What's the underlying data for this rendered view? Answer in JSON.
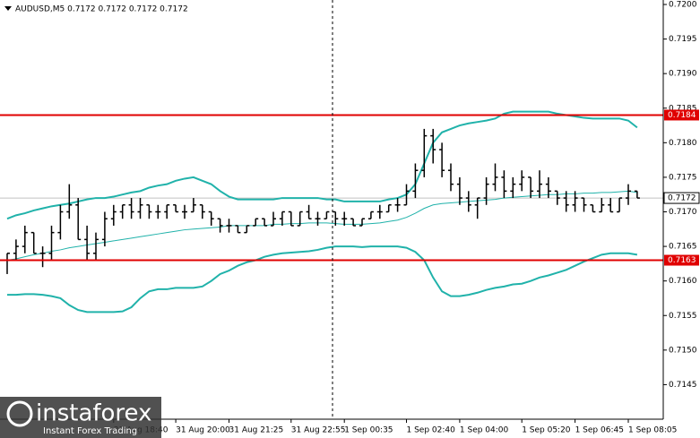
{
  "chart_data": {
    "type": "ohlc",
    "title": "AUDUSD,M5  0.7172 0.7172 0.7172 0.7172",
    "color": "#000000",
    "ylim": [
      0.714,
      0.72
    ],
    "yticks": [
      0.7145,
      {
        "value": 0.715,
        "label": "0.7150"
      },
      0.7155,
      {
        "value": 0.716,
        "label": "0.7160"
      },
      0.7165,
      {
        "value": 0.717,
        "label": "0.7170"
      },
      0.7175,
      {
        "value": 0.718,
        "label": "0.7180"
      },
      0.7185,
      {
        "value": 0.719,
        "label": "0.7190"
      },
      0.7195,
      {
        "value": 0.72,
        "label": "0.7200"
      }
    ],
    "xticks": [
      {
        "value": 12,
        "label": "31 Aug 18:40"
      },
      {
        "value": 19,
        "label": "31 Aug 20:00"
      },
      {
        "value": 25,
        "label": "31 Aug 21:25"
      },
      {
        "value": 32,
        "label": "31 Aug 22:55"
      },
      {
        "value": 38,
        "label": "1 Sep 00:35"
      },
      {
        "value": 45,
        "label": "1 Sep 02:40"
      },
      {
        "value": 51,
        "label": "1 Sep 04:00"
      },
      {
        "value": 58,
        "label": "1 Sep 05:20"
      },
      {
        "value": 64,
        "label": "1 Sep 06:45"
      },
      {
        "value": 70,
        "label": "1 Sep 08:05"
      }
    ],
    "levels": [
      {
        "value": 0.7184,
        "label": "0.7184",
        "color": "#e00000"
      },
      {
        "value": 0.7163,
        "label": "0.7163",
        "color": "#e00000"
      }
    ],
    "last_price": {
      "value": 0.7172,
      "label": "0.7172"
    },
    "bands": [
      {
        "color": "#20b2aa",
        "values": [
          0.7169,
          0.71695,
          0.71698,
          0.71702,
          0.71705,
          0.71708,
          0.7171,
          0.71712,
          0.71715,
          0.71718,
          0.7172,
          0.7172,
          0.71722,
          0.71725,
          0.71728,
          0.7173,
          0.71735,
          0.71738,
          0.7174,
          0.71745,
          0.71748,
          0.7175,
          0.71745,
          0.7174,
          0.7173,
          0.71722,
          0.71718,
          0.71718,
          0.71718,
          0.71718,
          0.71718,
          0.7172,
          0.7172,
          0.7172,
          0.7172,
          0.7172,
          0.71718,
          0.71718,
          0.71715,
          0.71715,
          0.71715,
          0.71715,
          0.71715,
          0.71718,
          0.7172,
          0.71725,
          0.7174,
          0.7177,
          0.718,
          0.71815,
          0.7182,
          0.71825,
          0.71828,
          0.7183,
          0.71832,
          0.71835,
          0.71842,
          0.71845,
          0.71845,
          0.71845,
          0.71845,
          0.71845,
          0.71842,
          0.7184,
          0.71838,
          0.71836,
          0.71835,
          0.71835,
          0.71835,
          0.71835,
          0.71832,
          0.71822
        ]
      },
      {
        "color": "#20b2aa",
        "values": [
          0.7163,
          0.71632,
          0.71635,
          0.71638,
          0.7164,
          0.71643,
          0.71645,
          0.71648,
          0.7165,
          0.71652,
          0.71654,
          0.71656,
          0.71658,
          0.7166,
          0.71662,
          0.71664,
          0.71666,
          0.71668,
          0.7167,
          0.71672,
          0.71674,
          0.71675,
          0.71676,
          0.71677,
          0.71678,
          0.7168,
          0.7168,
          0.7168,
          0.7168,
          0.7168,
          0.71682,
          0.71682,
          0.71683,
          0.71683,
          0.71684,
          0.71684,
          0.71684,
          0.71683,
          0.71682,
          0.71682,
          0.71682,
          0.71683,
          0.71684,
          0.71686,
          0.71688,
          0.71692,
          0.71698,
          0.71705,
          0.7171,
          0.71712,
          0.71713,
          0.71714,
          0.71715,
          0.71716,
          0.71717,
          0.71718,
          0.7172,
          0.71721,
          0.71722,
          0.71723,
          0.71724,
          0.71725,
          0.71725,
          0.71726,
          0.71726,
          0.71727,
          0.71727,
          0.71728,
          0.71728,
          0.71729,
          0.7173,
          0.71728
        ]
      },
      {
        "color": "#20b2aa",
        "values": [
          0.7158,
          0.7158,
          0.71581,
          0.71581,
          0.7158,
          0.71578,
          0.71575,
          0.71565,
          0.71558,
          0.71555,
          0.71555,
          0.71555,
          0.71555,
          0.71556,
          0.71562,
          0.71575,
          0.71585,
          0.71588,
          0.71588,
          0.7159,
          0.7159,
          0.7159,
          0.71592,
          0.716,
          0.7161,
          0.71615,
          0.71622,
          0.71627,
          0.7163,
          0.71635,
          0.71638,
          0.7164,
          0.71641,
          0.71642,
          0.71643,
          0.71645,
          0.71648,
          0.7165,
          0.7165,
          0.7165,
          0.71649,
          0.7165,
          0.7165,
          0.7165,
          0.7165,
          0.71648,
          0.71642,
          0.7163,
          0.71605,
          0.71585,
          0.71578,
          0.71578,
          0.7158,
          0.71583,
          0.71587,
          0.7159,
          0.71592,
          0.71595,
          0.71596,
          0.716,
          0.71605,
          0.71608,
          0.71612,
          0.71616,
          0.71622,
          0.71628,
          0.71633,
          0.71638,
          0.7164,
          0.7164,
          0.7164,
          0.71638
        ]
      }
    ],
    "ohlc": [
      [
        0.7163,
        0.7164,
        0.7161,
        0.7164
      ],
      [
        0.7164,
        0.7166,
        0.7163,
        0.7165
      ],
      [
        0.7165,
        0.7168,
        0.7164,
        0.7167
      ],
      [
        0.7167,
        0.7167,
        0.7164,
        0.7164
      ],
      [
        0.7164,
        0.7165,
        0.7162,
        0.7164
      ],
      [
        0.7164,
        0.7168,
        0.7163,
        0.7167
      ],
      [
        0.7167,
        0.7171,
        0.7166,
        0.717
      ],
      [
        0.717,
        0.7174,
        0.7169,
        0.7171
      ],
      [
        0.7171,
        0.7172,
        0.7166,
        0.7166
      ],
      [
        0.7166,
        0.7168,
        0.7163,
        0.7164
      ],
      [
        0.7164,
        0.7167,
        0.7163,
        0.7166
      ],
      [
        0.7166,
        0.717,
        0.7165,
        0.7169
      ],
      [
        0.7169,
        0.7171,
        0.7168,
        0.717
      ],
      [
        0.717,
        0.7171,
        0.7169,
        0.7171
      ],
      [
        0.7171,
        0.7172,
        0.7169,
        0.717
      ],
      [
        0.717,
        0.7172,
        0.7169,
        0.7171
      ],
      [
        0.7171,
        0.7171,
        0.7169,
        0.717
      ],
      [
        0.717,
        0.7171,
        0.7169,
        0.717
      ],
      [
        0.717,
        0.7171,
        0.7169,
        0.7171
      ],
      [
        0.7171,
        0.7171,
        0.717,
        0.717
      ],
      [
        0.717,
        0.7171,
        0.7169,
        0.717
      ],
      [
        0.717,
        0.7172,
        0.717,
        0.7171
      ],
      [
        0.7171,
        0.7171,
        0.7169,
        0.717
      ],
      [
        0.717,
        0.717,
        0.7168,
        0.7169
      ],
      [
        0.7169,
        0.7169,
        0.7167,
        0.7168
      ],
      [
        0.7168,
        0.7169,
        0.7167,
        0.7168
      ],
      [
        0.7168,
        0.7168,
        0.7167,
        0.7167
      ],
      [
        0.7167,
        0.7168,
        0.7167,
        0.7168
      ],
      [
        0.7168,
        0.7169,
        0.7168,
        0.7169
      ],
      [
        0.7169,
        0.7169,
        0.7168,
        0.7168
      ],
      [
        0.7168,
        0.717,
        0.7168,
        0.7169
      ],
      [
        0.7169,
        0.717,
        0.7168,
        0.717
      ],
      [
        0.717,
        0.717,
        0.7168,
        0.7168
      ],
      [
        0.7168,
        0.717,
        0.7168,
        0.717
      ],
      [
        0.717,
        0.7171,
        0.7169,
        0.7169
      ],
      [
        0.7169,
        0.717,
        0.7168,
        0.7169
      ],
      [
        0.7169,
        0.717,
        0.7169,
        0.717
      ],
      [
        0.717,
        0.717,
        0.7168,
        0.7169
      ],
      [
        0.7169,
        0.717,
        0.7168,
        0.7169
      ],
      [
        0.7169,
        0.7169,
        0.7168,
        0.7168
      ],
      [
        0.7168,
        0.7169,
        0.7168,
        0.7169
      ],
      [
        0.7169,
        0.717,
        0.7169,
        0.717
      ],
      [
        0.717,
        0.7171,
        0.7169,
        0.717
      ],
      [
        0.717,
        0.7171,
        0.717,
        0.7171
      ],
      [
        0.7171,
        0.7172,
        0.717,
        0.7171
      ],
      [
        0.7171,
        0.7174,
        0.7171,
        0.7173
      ],
      [
        0.7173,
        0.7177,
        0.7172,
        0.7176
      ],
      [
        0.7176,
        0.7182,
        0.7175,
        0.7181
      ],
      [
        0.7181,
        0.7182,
        0.7177,
        0.7179
      ],
      [
        0.7179,
        0.718,
        0.7175,
        0.7176
      ],
      [
        0.7176,
        0.7177,
        0.7173,
        0.7174
      ],
      [
        0.7174,
        0.7175,
        0.7171,
        0.7172
      ],
      [
        0.7172,
        0.7173,
        0.717,
        0.7171
      ],
      [
        0.7171,
        0.7172,
        0.7169,
        0.7172
      ],
      [
        0.7172,
        0.7175,
        0.7171,
        0.7174
      ],
      [
        0.7174,
        0.7177,
        0.7173,
        0.7175
      ],
      [
        0.7175,
        0.7176,
        0.7172,
        0.7173
      ],
      [
        0.7173,
        0.7175,
        0.7172,
        0.7174
      ],
      [
        0.7174,
        0.7176,
        0.7173,
        0.7175
      ],
      [
        0.7175,
        0.7175,
        0.7172,
        0.7173
      ],
      [
        0.7173,
        0.7176,
        0.7172,
        0.7174
      ],
      [
        0.7174,
        0.7175,
        0.7172,
        0.7173
      ],
      [
        0.7173,
        0.7173,
        0.7171,
        0.7172
      ],
      [
        0.7172,
        0.7173,
        0.717,
        0.7171
      ],
      [
        0.7171,
        0.7173,
        0.717,
        0.7172
      ],
      [
        0.7172,
        0.7172,
        0.717,
        0.7171
      ],
      [
        0.7171,
        0.7171,
        0.717,
        0.717
      ],
      [
        0.717,
        0.7172,
        0.717,
        0.7171
      ],
      [
        0.7171,
        0.7172,
        0.717,
        0.717
      ],
      [
        0.717,
        0.7172,
        0.717,
        0.7172
      ],
      [
        0.7172,
        0.7174,
        0.7171,
        0.7173
      ],
      [
        0.7173,
        0.7173,
        0.7172,
        0.7172
      ]
    ]
  },
  "logo": {
    "name": "instaforex",
    "tagline": "Instant Forex Trading"
  }
}
